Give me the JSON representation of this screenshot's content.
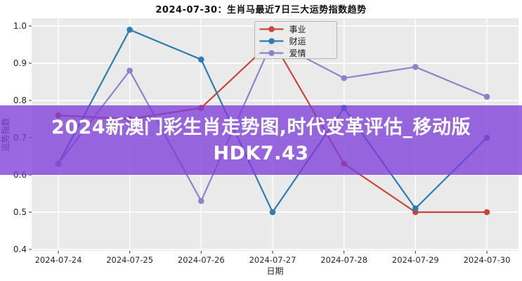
{
  "chart_data": {
    "type": "line",
    "title": "2024-07-30：生肖马最近7日三大运势指数趋势",
    "categories": [
      "2024-07-24",
      "2024-07-25",
      "2024-07-26",
      "2024-07-27",
      "2024-07-28",
      "2024-07-29",
      "2024-07-30"
    ],
    "series": [
      {
        "id": "career",
        "name": "事业",
        "color": "#c9453e",
        "values": [
          0.76,
          0.75,
          0.78,
          0.96,
          0.63,
          0.5,
          0.5
        ]
      },
      {
        "id": "wealth",
        "name": "财运",
        "color": "#2e7cb0",
        "values": [
          0.63,
          0.99,
          0.91,
          0.5,
          0.78,
          0.51,
          0.7
        ]
      },
      {
        "id": "love",
        "name": "爱情",
        "color": "#8d83c9",
        "values": [
          0.63,
          0.88,
          0.53,
          0.96,
          0.86,
          0.89,
          0.81
        ]
      }
    ],
    "xlabel": "日期",
    "ylabel": "运势指数",
    "ylim": [
      0.4,
      1.0
    ],
    "yticks": [
      "0.4",
      "0.5",
      "0.6",
      "0.7",
      "0.8",
      "0.9",
      "1.0"
    ],
    "grid": true,
    "legend_position": "upper center",
    "plot_bg": "#eaeaea",
    "grid_color": "#ffffff",
    "tick_label_color": "#262626",
    "legend_bg": "#ececec",
    "legend_border": "#b5b5b5"
  },
  "watermark": {
    "line1": "2024新澳门彩生肖走势图,时代变革评估_移动版",
    "line2": "HDK7.43",
    "bg_color": "#7d3ed8",
    "text_color": "#ffffff"
  }
}
